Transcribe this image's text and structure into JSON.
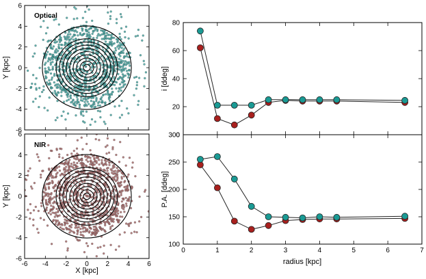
{
  "colors": {
    "optical_dots": "#4aa3a0",
    "nir_dots": "#a86a6a",
    "teal_series": "#1a9a94",
    "red_series": "#a8201e",
    "ellipse": "#000000"
  },
  "chart_data": [
    {
      "type": "scatter",
      "panel_label": "Optical",
      "xlabel": "",
      "ylabel": "Y [kpc]",
      "xlim": [
        -6,
        6
      ],
      "ylim": [
        -6,
        6
      ],
      "xticks": [
        "-6",
        "-4",
        "-2",
        "0",
        "2",
        "4",
        "6"
      ],
      "yticks": [
        "-6",
        "-4",
        "-2",
        "0",
        "2",
        "4",
        "6"
      ],
      "ring_radii": [
        0.5,
        1,
        1.5,
        2,
        2.5,
        3,
        3.5,
        4,
        4.5,
        6.5
      ]
    },
    {
      "type": "scatter",
      "panel_label": "NIR",
      "xlabel": "X [kpc]",
      "ylabel": "Y [kpc]",
      "xlim": [
        -6,
        6
      ],
      "ylim": [
        -6,
        6
      ],
      "xticks": [
        "-6",
        "-4",
        "-2",
        "0",
        "2",
        "4",
        "6"
      ],
      "yticks": [
        "-6",
        "-4",
        "-2",
        "0",
        "2",
        "4",
        "6"
      ],
      "ring_radii": [
        0.5,
        1,
        1.5,
        2,
        2.5,
        3,
        3.5,
        4,
        4.5,
        6.5
      ]
    },
    {
      "type": "line",
      "xlabel": "",
      "ylabel": "i [ddeg]",
      "xlim": [
        0,
        7
      ],
      "ylim": [
        0,
        80
      ],
      "yticks": [
        "0",
        "20",
        "40",
        "60",
        "80"
      ],
      "x": [
        0.5,
        1,
        1.5,
        2,
        2.5,
        3,
        3.5,
        4,
        4.5,
        6.5
      ],
      "series": [
        {
          "color": "teal",
          "values": [
            74,
            21,
            21,
            21,
            25,
            25,
            25,
            25,
            25,
            24.5
          ]
        },
        {
          "color": "red",
          "values": [
            62,
            11.5,
            7,
            14,
            23,
            24.5,
            24,
            24,
            24,
            23
          ]
        }
      ]
    },
    {
      "type": "line",
      "xlabel": "radius [kpc]",
      "ylabel": "P.A. [ddeg]",
      "xlim": [
        0,
        7
      ],
      "ylim": [
        100,
        300
      ],
      "xticks": [
        "0",
        "1",
        "2",
        "3",
        "4",
        "5",
        "6",
        "7"
      ],
      "yticks": [
        "100",
        "150",
        "200",
        "250",
        "300"
      ],
      "x": [
        0.5,
        1,
        1.5,
        2,
        2.5,
        3,
        3.5,
        4,
        4.5,
        6.5
      ],
      "series": [
        {
          "color": "teal",
          "values": [
            255,
            260,
            219,
            169,
            150,
            149,
            148,
            150,
            149,
            151
          ]
        },
        {
          "color": "red",
          "values": [
            245,
            203,
            142,
            127,
            134,
            143,
            145,
            146,
            146,
            147
          ]
        }
      ]
    }
  ]
}
